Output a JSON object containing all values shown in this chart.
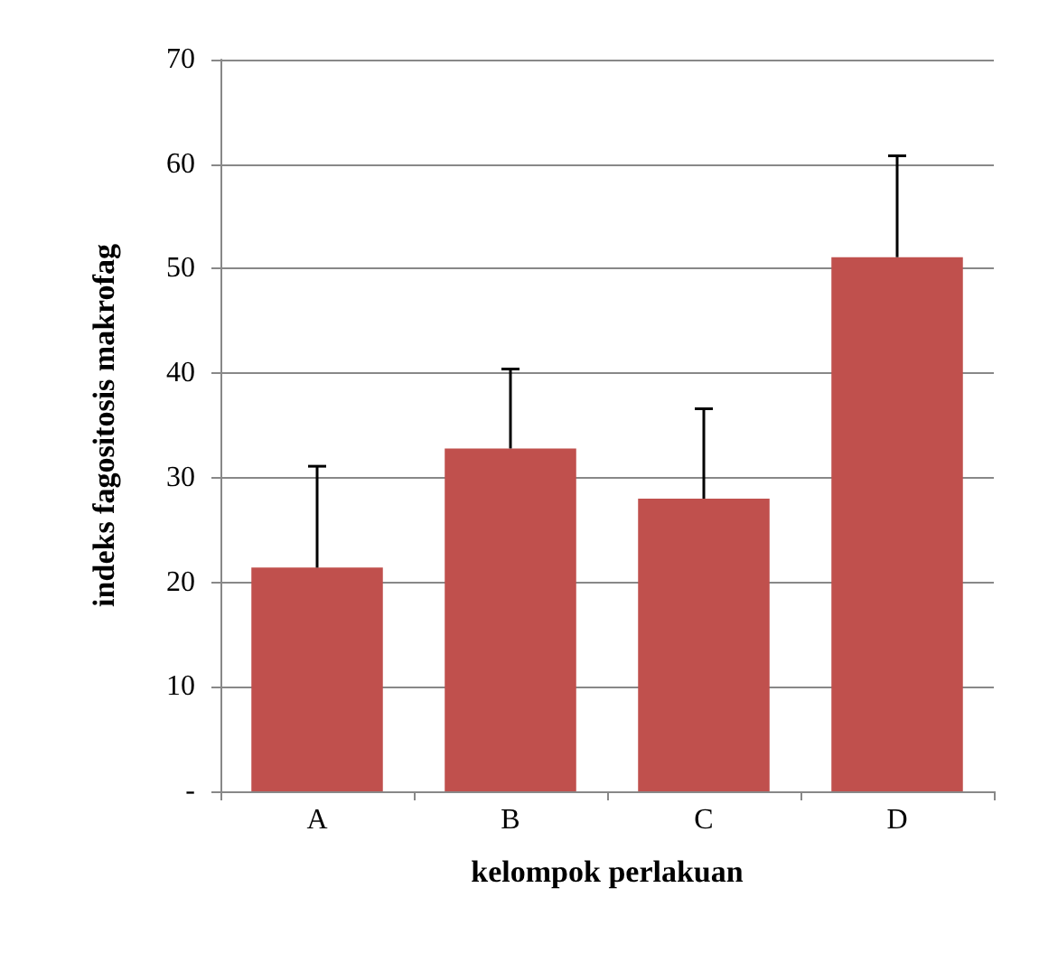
{
  "chart_data": {
    "type": "bar",
    "xlabel": "kelompok perlakuan",
    "ylabel": "indeks fagositosis makrofag",
    "categories": [
      "A",
      "B",
      "C",
      "D"
    ],
    "values": [
      21.4,
      32.8,
      28.0,
      51.1
    ],
    "errors": [
      [
        21.4,
        31.1
      ],
      [
        32.8,
        40.4
      ],
      [
        28.0,
        36.6
      ],
      [
        51.1,
        60.8
      ]
    ],
    "color": "#c0504d",
    "ylim": [
      0,
      70
    ],
    "yticks": [
      {
        "value": 0,
        "label": "-"
      },
      10,
      20,
      30,
      40,
      50,
      60,
      70
    ],
    "grid": "y"
  }
}
